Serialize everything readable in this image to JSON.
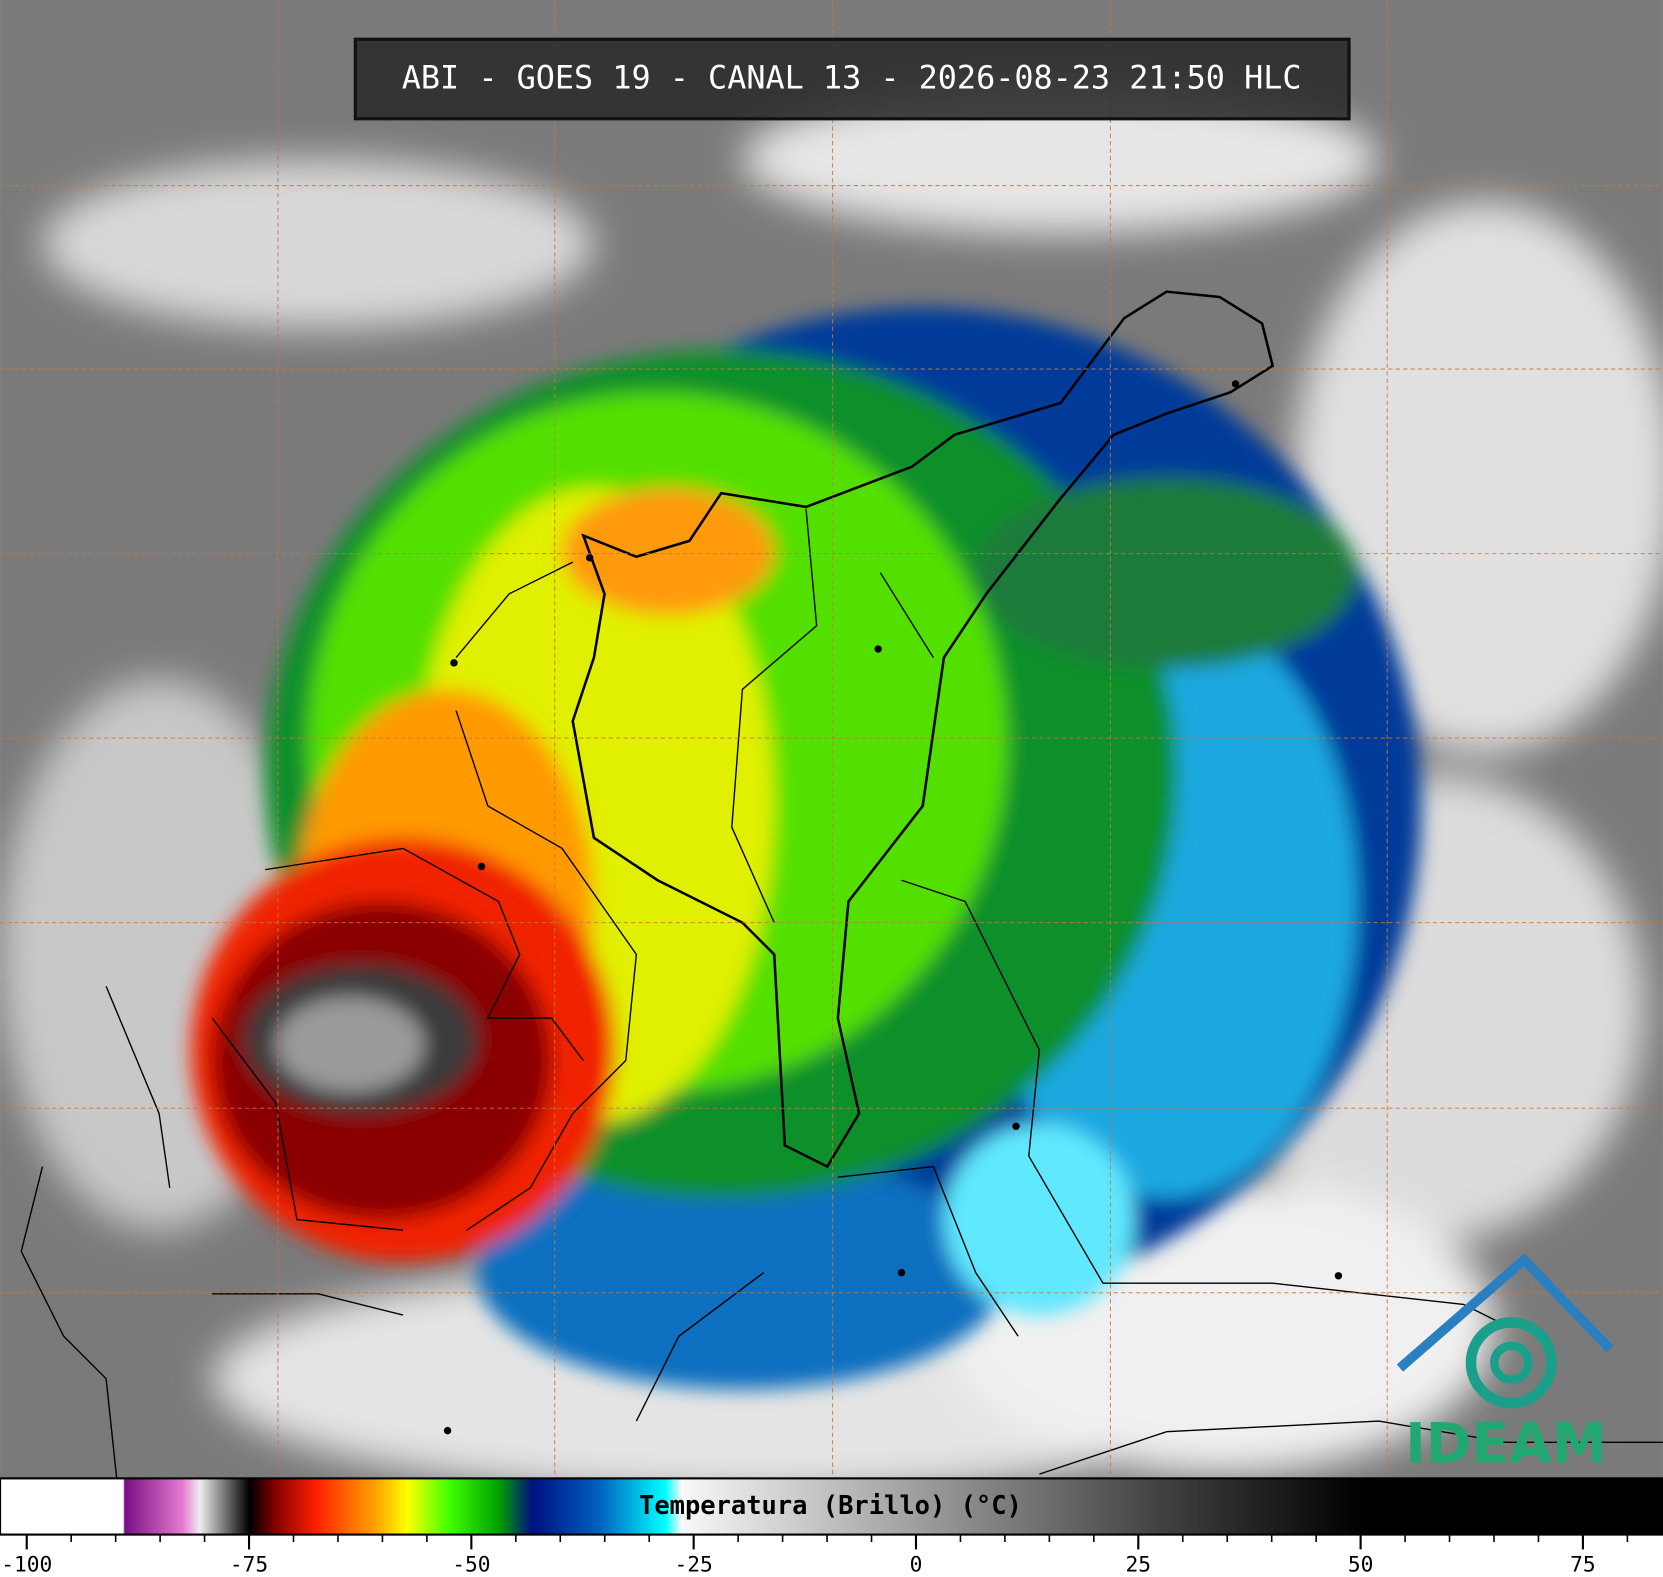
{
  "header": {
    "title": "ABI - GOES 19 - CANAL 13 - 2026-08-23 21:50 HLC"
  },
  "colorbar": {
    "label": "Temperatura (Brillo) (°C)",
    "lim": [
      -103,
      84
    ],
    "ticks": [
      -100,
      -75,
      -50,
      -25,
      0,
      25,
      50,
      75
    ],
    "minor_ticks": [
      -95,
      -90,
      -85,
      -80,
      -70,
      -65,
      -60,
      -55,
      -45,
      -40,
      -35,
      -30,
      -20,
      -15,
      -10,
      -5,
      5,
      10,
      15,
      20,
      30,
      35,
      40,
      45,
      55,
      60,
      65,
      70,
      80
    ]
  },
  "logo": {
    "text": "IDEAM"
  }
}
